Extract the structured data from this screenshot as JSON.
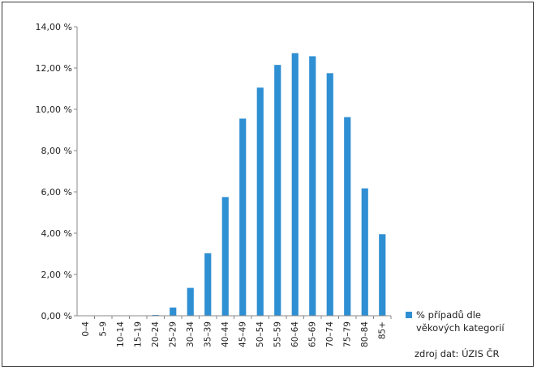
{
  "chart_data": {
    "type": "bar",
    "categories": [
      "0–4",
      "5–9",
      "10–14",
      "15–19",
      "20–24",
      "25–29",
      "30–34",
      "35–39",
      "40–44",
      "45–49",
      "50–54",
      "55–59",
      "60–64",
      "65–69",
      "70–74",
      "75–79",
      "80–84",
      "85+"
    ],
    "series": [
      {
        "name": "% případů dle věkových kategorií",
        "values": [
          0.0,
          0.0,
          0.0,
          0.0,
          0.04,
          0.4,
          1.35,
          3.03,
          5.75,
          9.55,
          11.05,
          12.15,
          12.72,
          12.57,
          11.75,
          9.62,
          6.17,
          3.95
        ]
      }
    ],
    "ylim": [
      0,
      14
    ],
    "yticks": [
      "0,00 %",
      "2,00 %",
      "4,00 %",
      "6,00 %",
      "8,00 %",
      "10,00 %",
      "12,00 %",
      "14,00 %"
    ],
    "ytick_values": [
      0,
      2,
      4,
      6,
      8,
      10,
      12,
      14
    ],
    "legend_position": "bottom-right",
    "colors": {
      "bar": "#2f8fd3",
      "axis": "#888888"
    },
    "title": "",
    "xlabel": "",
    "ylabel": "",
    "source": "zdroj dat: ÚZIS ČR"
  }
}
